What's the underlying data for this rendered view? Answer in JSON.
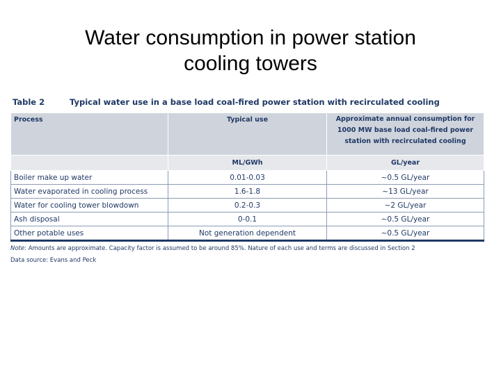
{
  "slide": {
    "title_line1": "Water consumption in power station",
    "title_line2": "cooling towers"
  },
  "table": {
    "number": "Table 2",
    "caption": "Typical water use in a base load coal-fired power station with recirculated cooling",
    "columns": [
      "Process",
      "Typical use",
      "Approximate annual consumption for 1000 MW base load coal-fired power station with recirculated cooling"
    ],
    "units": [
      "",
      "ML/GWh",
      "GL/year"
    ],
    "rows": [
      {
        "process": "Boiler make up water",
        "use": "0.01-0.03",
        "annual": "~0.5 GL/year"
      },
      {
        "process": "Water evaporated in cooling process",
        "use": "1.6-1.8",
        "annual": "~13 GL/year"
      },
      {
        "process": "Water for cooling tower blowdown",
        "use": "0.2-0.3",
        "annual": "~2 GL/year"
      },
      {
        "process": "Ash disposal",
        "use": "0-0.1",
        "annual": "~0.5 GL/year"
      },
      {
        "process": "Other potable uses",
        "use": "Not generation dependent",
        "annual": "~0.5 GL/year"
      }
    ],
    "note_label": "Note:",
    "note_text": "Amounts are approximate. Capacity factor is assumed to be around 85%. Nature of each use and terms are discussed in Section 2",
    "source": "Data source: Evans and Peck"
  }
}
